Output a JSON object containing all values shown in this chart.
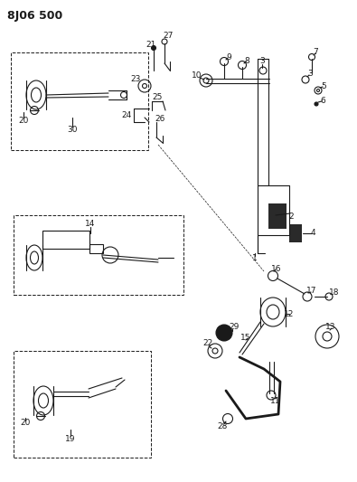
{
  "title_code": "8J06 500",
  "bg_color": "#ffffff",
  "line_color": "#1a1a1a",
  "fig_width": 3.95,
  "fig_height": 5.33,
  "dpi": 100
}
